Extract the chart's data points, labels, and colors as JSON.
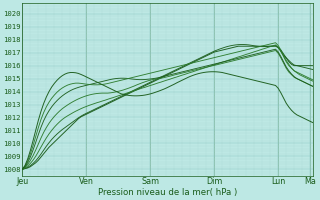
{
  "title": "",
  "xlabel": "Pression niveau de la mer( hPa )",
  "ylabel": "",
  "bg_color": "#bde8e4",
  "grid_color_major": "#8ec8c4",
  "grid_color_minor": "#a8d8d4",
  "line_colors": [
    "#1a5c1a",
    "#1a5c1a",
    "#2a7a2a",
    "#2a7a2a",
    "#1a5c1a",
    "#2a7a2a",
    "#1a5c1a"
  ],
  "ylim": [
    1007.5,
    1020.8
  ],
  "yticks": [
    1008,
    1009,
    1010,
    1011,
    1012,
    1013,
    1014,
    1015,
    1016,
    1017,
    1018,
    1019,
    1020
  ],
  "xlabels": [
    "Jeu",
    "Ven",
    "Sam",
    "Dim",
    "Lun",
    "Ma"
  ],
  "xpositions": [
    0,
    24,
    48,
    72,
    96,
    108
  ],
  "num_points": 110,
  "series": [
    [
      1008.0,
      1008.05,
      1008.1,
      1008.2,
      1008.35,
      1008.5,
      1008.7,
      1008.95,
      1009.2,
      1009.45,
      1009.7,
      1009.9,
      1010.1,
      1010.3,
      1010.5,
      1010.7,
      1010.9,
      1011.1,
      1011.3,
      1011.5,
      1011.7,
      1011.9,
      1012.05,
      1012.15,
      1012.25,
      1012.35,
      1012.45,
      1012.55,
      1012.65,
      1012.75,
      1012.85,
      1012.95,
      1013.05,
      1013.15,
      1013.25,
      1013.35,
      1013.45,
      1013.55,
      1013.65,
      1013.75,
      1013.85,
      1013.95,
      1014.05,
      1014.15,
      1014.25,
      1014.35,
      1014.45,
      1014.55,
      1014.65,
      1014.75,
      1014.85,
      1014.95,
      1015.05,
      1015.15,
      1015.25,
      1015.35,
      1015.45,
      1015.55,
      1015.65,
      1015.75,
      1015.85,
      1015.95,
      1016.05,
      1016.15,
      1016.25,
      1016.35,
      1016.45,
      1016.55,
      1016.65,
      1016.75,
      1016.85,
      1016.95,
      1017.05,
      1017.1,
      1017.15,
      1017.2,
      1017.25,
      1017.3,
      1017.35,
      1017.4,
      1017.45,
      1017.5,
      1017.5,
      1017.5,
      1017.5,
      1017.5,
      1017.5,
      1017.5,
      1017.5,
      1017.5,
      1017.5,
      1017.5,
      1017.5,
      1017.5,
      1017.5,
      1017.5,
      1017.4,
      1017.2,
      1016.9,
      1016.6,
      1016.3,
      1016.1,
      1016.0,
      1016.0,
      1016.0,
      1016.0,
      1016.0,
      1016.0,
      1016.0,
      1016.0
    ],
    [
      1008.0,
      1008.07,
      1008.15,
      1008.28,
      1008.45,
      1008.65,
      1008.9,
      1009.18,
      1009.48,
      1009.78,
      1010.05,
      1010.3,
      1010.52,
      1010.72,
      1010.9,
      1011.07,
      1011.22,
      1011.37,
      1011.52,
      1011.67,
      1011.82,
      1011.97,
      1012.1,
      1012.22,
      1012.32,
      1012.42,
      1012.52,
      1012.62,
      1012.72,
      1012.82,
      1012.92,
      1013.02,
      1013.12,
      1013.22,
      1013.32,
      1013.42,
      1013.52,
      1013.62,
      1013.72,
      1013.82,
      1013.92,
      1014.02,
      1014.12,
      1014.22,
      1014.32,
      1014.42,
      1014.52,
      1014.62,
      1014.72,
      1014.82,
      1014.92,
      1015.02,
      1015.12,
      1015.22,
      1015.32,
      1015.42,
      1015.52,
      1015.62,
      1015.72,
      1015.82,
      1015.92,
      1016.02,
      1016.12,
      1016.22,
      1016.32,
      1016.42,
      1016.52,
      1016.62,
      1016.72,
      1016.82,
      1016.92,
      1017.02,
      1017.12,
      1017.2,
      1017.28,
      1017.35,
      1017.42,
      1017.48,
      1017.53,
      1017.57,
      1017.6,
      1017.62,
      1017.63,
      1017.63,
      1017.62,
      1017.6,
      1017.57,
      1017.53,
      1017.5,
      1017.48,
      1017.47,
      1017.47,
      1017.48,
      1017.5,
      1017.52,
      1017.55,
      1017.4,
      1017.1,
      1016.8,
      1016.6,
      1016.4,
      1016.2,
      1016.05,
      1016.0,
      1015.95,
      1015.9,
      1015.85,
      1015.8,
      1015.75,
      1015.7
    ],
    [
      1008.0,
      1008.1,
      1008.25,
      1008.45,
      1008.7,
      1009.0,
      1009.35,
      1009.72,
      1010.08,
      1010.42,
      1010.73,
      1011.0,
      1011.25,
      1011.47,
      1011.67,
      1011.85,
      1012.0,
      1012.13,
      1012.25,
      1012.37,
      1012.48,
      1012.58,
      1012.68,
      1012.77,
      1012.85,
      1012.93,
      1013.0,
      1013.07,
      1013.14,
      1013.2,
      1013.27,
      1013.33,
      1013.4,
      1013.47,
      1013.53,
      1013.6,
      1013.67,
      1013.73,
      1013.8,
      1013.87,
      1013.93,
      1014.0,
      1014.07,
      1014.13,
      1014.2,
      1014.27,
      1014.33,
      1014.4,
      1014.47,
      1014.53,
      1014.6,
      1014.67,
      1014.73,
      1014.8,
      1014.87,
      1014.93,
      1015.0,
      1015.07,
      1015.13,
      1015.2,
      1015.27,
      1015.33,
      1015.4,
      1015.47,
      1015.53,
      1015.6,
      1015.67,
      1015.73,
      1015.8,
      1015.87,
      1015.93,
      1016.0,
      1016.07,
      1016.13,
      1016.2,
      1016.27,
      1016.33,
      1016.4,
      1016.47,
      1016.53,
      1016.6,
      1016.67,
      1016.73,
      1016.8,
      1016.87,
      1016.93,
      1017.0,
      1017.07,
      1017.13,
      1017.2,
      1017.27,
      1017.33,
      1017.4,
      1017.47,
      1017.53,
      1017.6,
      1017.4,
      1017.1,
      1016.7,
      1016.3,
      1016.0,
      1015.8,
      1015.6,
      1015.5,
      1015.4,
      1015.3,
      1015.2,
      1015.1,
      1015.0,
      1014.9
    ],
    [
      1008.0,
      1008.15,
      1008.38,
      1008.68,
      1009.05,
      1009.48,
      1009.95,
      1010.42,
      1010.85,
      1011.22,
      1011.55,
      1011.83,
      1012.08,
      1012.3,
      1012.5,
      1012.68,
      1012.83,
      1012.97,
      1013.1,
      1013.22,
      1013.33,
      1013.43,
      1013.52,
      1013.6,
      1013.67,
      1013.73,
      1013.78,
      1013.82,
      1013.85,
      1013.87,
      1013.88,
      1013.88,
      1013.88,
      1013.9,
      1013.93,
      1013.97,
      1014.02,
      1014.07,
      1014.13,
      1014.2,
      1014.27,
      1014.35,
      1014.43,
      1014.52,
      1014.6,
      1014.68,
      1014.75,
      1014.82,
      1014.88,
      1014.93,
      1014.97,
      1015.0,
      1015.03,
      1015.07,
      1015.12,
      1015.17,
      1015.22,
      1015.28,
      1015.33,
      1015.38,
      1015.43,
      1015.48,
      1015.53,
      1015.58,
      1015.63,
      1015.68,
      1015.73,
      1015.78,
      1015.83,
      1015.88,
      1015.93,
      1015.98,
      1016.02,
      1016.07,
      1016.12,
      1016.17,
      1016.22,
      1016.27,
      1016.32,
      1016.37,
      1016.42,
      1016.47,
      1016.52,
      1016.57,
      1016.62,
      1016.67,
      1016.72,
      1016.77,
      1016.82,
      1016.87,
      1016.92,
      1016.97,
      1017.02,
      1017.07,
      1017.12,
      1017.17,
      1016.95,
      1016.6,
      1016.2,
      1015.8,
      1015.5,
      1015.3,
      1015.1,
      1015.0,
      1014.9,
      1014.8,
      1014.7,
      1014.6,
      1014.5,
      1014.4
    ],
    [
      1008.0,
      1008.2,
      1008.52,
      1008.95,
      1009.48,
      1010.07,
      1010.68,
      1011.25,
      1011.75,
      1012.17,
      1012.52,
      1012.82,
      1013.08,
      1013.3,
      1013.5,
      1013.67,
      1013.82,
      1013.95,
      1014.07,
      1014.17,
      1014.25,
      1014.32,
      1014.38,
      1014.43,
      1014.48,
      1014.53,
      1014.58,
      1014.63,
      1014.68,
      1014.73,
      1014.78,
      1014.83,
      1014.88,
      1014.93,
      1014.97,
      1015.0,
      1015.02,
      1015.03,
      1015.03,
      1015.02,
      1015.0,
      1014.97,
      1014.95,
      1014.93,
      1014.92,
      1014.92,
      1014.93,
      1014.95,
      1014.97,
      1015.0,
      1015.03,
      1015.07,
      1015.12,
      1015.17,
      1015.22,
      1015.27,
      1015.32,
      1015.37,
      1015.42,
      1015.47,
      1015.52,
      1015.57,
      1015.62,
      1015.67,
      1015.72,
      1015.77,
      1015.82,
      1015.87,
      1015.92,
      1015.97,
      1016.02,
      1016.07,
      1016.12,
      1016.17,
      1016.22,
      1016.27,
      1016.32,
      1016.37,
      1016.42,
      1016.47,
      1016.52,
      1016.57,
      1016.62,
      1016.67,
      1016.72,
      1016.77,
      1016.82,
      1016.87,
      1016.92,
      1016.97,
      1017.02,
      1017.07,
      1017.12,
      1017.17,
      1017.22,
      1017.27,
      1017.05,
      1016.7,
      1016.3,
      1015.9,
      1015.6,
      1015.35,
      1015.15,
      1015.0,
      1014.9,
      1014.8,
      1014.7,
      1014.6,
      1014.5,
      1014.4
    ],
    [
      1008.0,
      1008.25,
      1008.65,
      1009.18,
      1009.82,
      1010.52,
      1011.22,
      1011.85,
      1012.38,
      1012.82,
      1013.18,
      1013.48,
      1013.73,
      1013.95,
      1014.13,
      1014.28,
      1014.4,
      1014.5,
      1014.57,
      1014.62,
      1014.65,
      1014.65,
      1014.63,
      1014.6,
      1014.57,
      1014.55,
      1014.53,
      1014.52,
      1014.52,
      1014.53,
      1014.55,
      1014.58,
      1014.62,
      1014.67,
      1014.72,
      1014.77,
      1014.82,
      1014.87,
      1014.92,
      1014.97,
      1015.02,
      1015.07,
      1015.12,
      1015.17,
      1015.22,
      1015.27,
      1015.32,
      1015.37,
      1015.42,
      1015.47,
      1015.52,
      1015.57,
      1015.62,
      1015.67,
      1015.72,
      1015.77,
      1015.82,
      1015.87,
      1015.92,
      1015.97,
      1016.02,
      1016.07,
      1016.12,
      1016.17,
      1016.22,
      1016.27,
      1016.32,
      1016.37,
      1016.42,
      1016.47,
      1016.52,
      1016.57,
      1016.62,
      1016.67,
      1016.72,
      1016.77,
      1016.82,
      1016.87,
      1016.92,
      1016.97,
      1017.02,
      1017.07,
      1017.12,
      1017.17,
      1017.22,
      1017.27,
      1017.32,
      1017.37,
      1017.42,
      1017.47,
      1017.52,
      1017.57,
      1017.62,
      1017.67,
      1017.72,
      1017.77,
      1017.55,
      1017.2,
      1016.8,
      1016.4,
      1016.1,
      1015.8,
      1015.6,
      1015.45,
      1015.3,
      1015.2,
      1015.1,
      1015.0,
      1014.9,
      1014.8
    ],
    [
      1008.0,
      1008.3,
      1008.8,
      1009.45,
      1010.2,
      1011.0,
      1011.78,
      1012.48,
      1013.08,
      1013.58,
      1014.0,
      1014.35,
      1014.63,
      1014.87,
      1015.07,
      1015.23,
      1015.35,
      1015.43,
      1015.47,
      1015.47,
      1015.45,
      1015.4,
      1015.32,
      1015.23,
      1015.13,
      1015.03,
      1014.93,
      1014.83,
      1014.73,
      1014.63,
      1014.53,
      1014.43,
      1014.33,
      1014.23,
      1014.13,
      1014.03,
      1013.93,
      1013.83,
      1013.78,
      1013.73,
      1013.7,
      1013.68,
      1013.67,
      1013.67,
      1013.68,
      1013.7,
      1013.73,
      1013.77,
      1013.82,
      1013.88,
      1013.95,
      1014.02,
      1014.1,
      1014.18,
      1014.27,
      1014.37,
      1014.47,
      1014.57,
      1014.68,
      1014.78,
      1014.88,
      1014.98,
      1015.08,
      1015.17,
      1015.25,
      1015.32,
      1015.38,
      1015.43,
      1015.47,
      1015.5,
      1015.52,
      1015.53,
      1015.53,
      1015.52,
      1015.5,
      1015.47,
      1015.42,
      1015.37,
      1015.32,
      1015.27,
      1015.22,
      1015.17,
      1015.12,
      1015.07,
      1015.02,
      1014.97,
      1014.92,
      1014.87,
      1014.82,
      1014.77,
      1014.72,
      1014.67,
      1014.62,
      1014.57,
      1014.52,
      1014.47,
      1014.25,
      1013.9,
      1013.5,
      1013.1,
      1012.8,
      1012.55,
      1012.35,
      1012.2,
      1012.1,
      1012.0,
      1011.9,
      1011.8,
      1011.7,
      1011.6
    ]
  ]
}
